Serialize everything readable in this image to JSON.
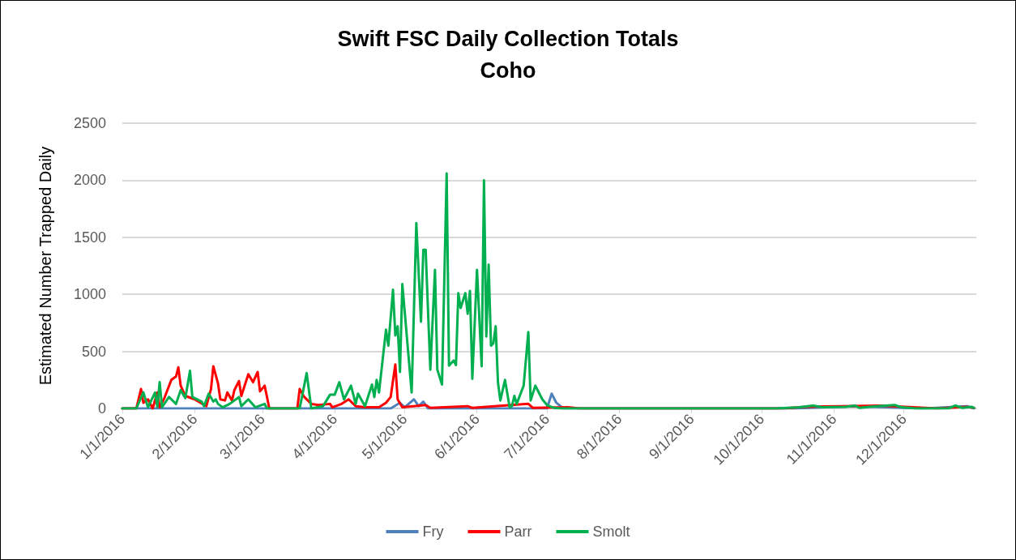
{
  "chart_data": {
    "type": "line",
    "title": "Swift FSC Daily Collection Totals",
    "subtitle": "Coho",
    "ylabel": "Estimated Number Trapped Daily",
    "xlim": [
      "2016-01-01",
      "2017-01-01"
    ],
    "xticks": [
      {
        "value": "2016-01-01",
        "label": "1/1/2016"
      },
      {
        "value": "2016-02-01",
        "label": "2/1/2016"
      },
      {
        "value": "2016-03-01",
        "label": "3/1/2016"
      },
      {
        "value": "2016-04-01",
        "label": "4/1/2016"
      },
      {
        "value": "2016-05-01",
        "label": "5/1/2016"
      },
      {
        "value": "2016-06-01",
        "label": "6/1/2016"
      },
      {
        "value": "2016-07-01",
        "label": "7/1/2016"
      },
      {
        "value": "2016-08-01",
        "label": "8/1/2016"
      },
      {
        "value": "2016-09-01",
        "label": "9/1/2016"
      },
      {
        "value": "2016-10-01",
        "label": "10/1/2016"
      },
      {
        "value": "2016-11-01",
        "label": "11/1/2016"
      },
      {
        "value": "2016-12-01",
        "label": "12/1/2016"
      }
    ],
    "ylim": [
      0,
      2500
    ],
    "yticks": [
      0,
      500,
      1000,
      1500,
      2000,
      2500
    ],
    "grid": "y",
    "legend": "bottom",
    "marker": "none",
    "line_style": "solid",
    "series": [
      {
        "name": "Fry",
        "color": "#4f81bd",
        "x": [
          "2016-01-01",
          "2016-04-25",
          "2016-04-29",
          "2016-05-01",
          "2016-05-05",
          "2016-05-07",
          "2016-05-09",
          "2016-05-11",
          "2016-07-01",
          "2016-07-03",
          "2016-07-05",
          "2016-07-08",
          "2016-10-15",
          "2016-11-01",
          "2016-11-10",
          "2016-12-01",
          "2016-12-10",
          "2016-12-28",
          "2016-12-31"
        ],
        "values": [
          0,
          0,
          50,
          10,
          80,
          20,
          60,
          0,
          0,
          130,
          50,
          0,
          0,
          15,
          20,
          5,
          0,
          20,
          0
        ]
      },
      {
        "name": "Parr",
        "color": "#ff0000",
        "x": [
          "2016-01-01",
          "2016-01-07",
          "2016-01-09",
          "2016-01-10",
          "2016-01-12",
          "2016-01-14",
          "2016-01-16",
          "2016-01-17",
          "2016-01-19",
          "2016-01-22",
          "2016-01-24",
          "2016-01-25",
          "2016-01-26",
          "2016-01-28",
          "2016-02-01",
          "2016-02-06",
          "2016-02-08",
          "2016-02-09",
          "2016-02-11",
          "2016-02-12",
          "2016-02-14",
          "2016-02-15",
          "2016-02-17",
          "2016-02-18",
          "2016-02-20",
          "2016-02-21",
          "2016-02-24",
          "2016-02-26",
          "2016-02-28",
          "2016-02-29",
          "2016-03-02",
          "2016-03-04",
          "2016-03-16",
          "2016-03-17",
          "2016-03-19",
          "2016-03-22",
          "2016-03-25",
          "2016-03-30",
          "2016-03-31",
          "2016-04-04",
          "2016-04-07",
          "2016-04-10",
          "2016-04-14",
          "2016-04-20",
          "2016-04-23",
          "2016-04-25",
          "2016-04-27",
          "2016-04-28",
          "2016-04-30",
          "2016-05-10",
          "2016-05-12",
          "2016-05-28",
          "2016-05-30",
          "2016-06-23",
          "2016-06-25",
          "2016-07-10",
          "2016-07-15",
          "2016-10-10",
          "2016-10-20",
          "2016-11-05",
          "2016-11-20",
          "2016-12-05",
          "2016-12-15",
          "2016-12-28",
          "2016-12-31"
        ],
        "values": [
          0,
          0,
          170,
          50,
          80,
          0,
          140,
          10,
          90,
          250,
          280,
          360,
          200,
          110,
          80,
          20,
          170,
          370,
          220,
          80,
          70,
          140,
          70,
          160,
          240,
          110,
          300,
          230,
          320,
          150,
          200,
          0,
          0,
          170,
          100,
          40,
          30,
          40,
          10,
          40,
          80,
          20,
          10,
          10,
          50,
          100,
          385,
          80,
          10,
          30,
          5,
          20,
          5,
          40,
          5,
          10,
          0,
          0,
          15,
          20,
          25,
          10,
          0,
          15,
          5
        ]
      },
      {
        "name": "Smolt",
        "color": "#00b050",
        "x": [
          "2016-01-01",
          "2016-01-07",
          "2016-01-10",
          "2016-01-12",
          "2016-01-15",
          "2016-01-16",
          "2016-01-17",
          "2016-01-18",
          "2016-01-21",
          "2016-01-24",
          "2016-01-26",
          "2016-01-28",
          "2016-01-30",
          "2016-01-31",
          "2016-02-04",
          "2016-02-05",
          "2016-02-07",
          "2016-02-09",
          "2016-02-10",
          "2016-02-11",
          "2016-02-13",
          "2016-02-16",
          "2016-02-20",
          "2016-02-21",
          "2016-02-24",
          "2016-02-27",
          "2016-03-02",
          "2016-03-03",
          "2016-03-17",
          "2016-03-20",
          "2016-03-22",
          "2016-03-27",
          "2016-03-30",
          "2016-04-01",
          "2016-04-03",
          "2016-04-05",
          "2016-04-08",
          "2016-04-10",
          "2016-04-11",
          "2016-04-14",
          "2016-04-17",
          "2016-04-18",
          "2016-04-19",
          "2016-04-20",
          "2016-04-23",
          "2016-04-24",
          "2016-04-26",
          "2016-04-27",
          "2016-04-28",
          "2016-04-29",
          "2016-04-30",
          "2016-05-04",
          "2016-05-06",
          "2016-05-08",
          "2016-05-09",
          "2016-05-10",
          "2016-05-12",
          "2016-05-14",
          "2016-05-15",
          "2016-05-17",
          "2016-05-19",
          "2016-05-20",
          "2016-05-22",
          "2016-05-23",
          "2016-05-24",
          "2016-05-25",
          "2016-05-27",
          "2016-05-28",
          "2016-05-29",
          "2016-05-30",
          "2016-06-01",
          "2016-06-03",
          "2016-06-04",
          "2016-06-05",
          "2016-06-06",
          "2016-06-07",
          "2016-06-08",
          "2016-06-09",
          "2016-06-10",
          "2016-06-11",
          "2016-06-13",
          "2016-06-15",
          "2016-06-16",
          "2016-06-17",
          "2016-06-18",
          "2016-06-21",
          "2016-06-23",
          "2016-06-24",
          "2016-06-26",
          "2016-06-27",
          "2016-06-29",
          "2016-07-01",
          "2016-07-04",
          "2016-07-07",
          "2016-10-07",
          "2016-10-17",
          "2016-10-23",
          "2016-10-27",
          "2016-11-06",
          "2016-11-10",
          "2016-11-12",
          "2016-11-16",
          "2016-11-27",
          "2016-11-30",
          "2016-12-06",
          "2016-12-20",
          "2016-12-23",
          "2016-12-26",
          "2016-12-30",
          "2016-12-31"
        ],
        "values": [
          0,
          0,
          141,
          10,
          140,
          15,
          230,
          12,
          100,
          40,
          160,
          90,
          330,
          100,
          60,
          20,
          130,
          60,
          80,
          40,
          10,
          40,
          100,
          20,
          80,
          10,
          40,
          0,
          0,
          310,
          0,
          20,
          120,
          120,
          230,
          80,
          200,
          40,
          130,
          20,
          210,
          100,
          250,
          140,
          690,
          550,
          1040,
          640,
          720,
          320,
          1090,
          140,
          1625,
          760,
          1390,
          1390,
          340,
          1215,
          340,
          210,
          2060,
          375,
          420,
          380,
          1010,
          880,
          1010,
          830,
          1030,
          260,
          1215,
          370,
          2000,
          630,
          1260,
          550,
          570,
          720,
          225,
          70,
          250,
          10,
          20,
          110,
          40,
          200,
          670,
          70,
          200,
          160,
          80,
          30,
          5,
          0,
          0,
          10,
          25,
          10,
          15,
          25,
          5,
          15,
          30,
          10,
          0,
          0,
          25,
          5,
          15,
          5
        ]
      }
    ]
  }
}
